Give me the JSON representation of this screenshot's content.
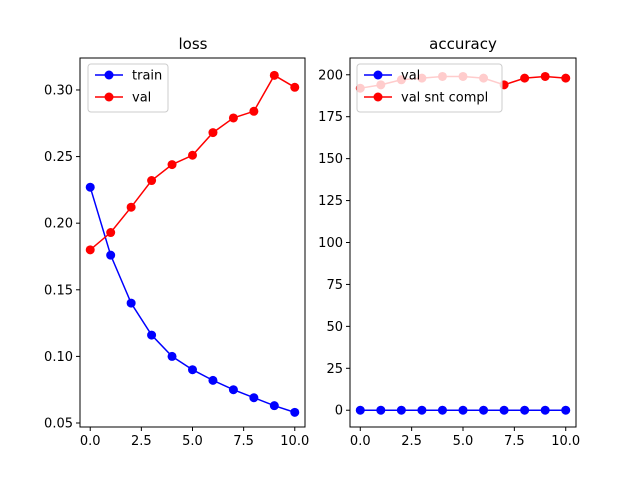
{
  "chart_data": [
    {
      "type": "line",
      "title": "loss",
      "xlabel": "",
      "ylabel": "",
      "xlim": [
        -0.5,
        10.5
      ],
      "ylim": [
        0.047,
        0.324
      ],
      "xticks": [
        0.0,
        2.5,
        5.0,
        7.5,
        10.0
      ],
      "xtick_labels": [
        "0.0",
        "2.5",
        "5.0",
        "7.5",
        "10.0"
      ],
      "yticks": [
        0.05,
        0.1,
        0.15,
        0.2,
        0.25,
        0.3
      ],
      "ytick_labels": [
        "0.05",
        "0.10",
        "0.15",
        "0.20",
        "0.25",
        "0.30"
      ],
      "grid": false,
      "legend": "upper-left",
      "x": [
        0,
        1,
        2,
        3,
        4,
        5,
        6,
        7,
        8,
        9,
        10
      ],
      "series": [
        {
          "name": "train",
          "color": "#0000ff",
          "marker": "circle",
          "values": [
            0.227,
            0.176,
            0.14,
            0.116,
            0.1,
            0.09,
            0.082,
            0.075,
            0.069,
            0.063,
            0.058
          ]
        },
        {
          "name": "val",
          "color": "#ff0000",
          "marker": "circle",
          "values": [
            0.18,
            0.193,
            0.212,
            0.232,
            0.244,
            0.251,
            0.268,
            0.279,
            0.284,
            0.311,
            0.302
          ]
        }
      ]
    },
    {
      "type": "line",
      "title": "accuracy",
      "xlabel": "",
      "ylabel": "",
      "xlim": [
        -0.5,
        10.5
      ],
      "ylim": [
        -10,
        210
      ],
      "xticks": [
        0.0,
        2.5,
        5.0,
        7.5,
        10.0
      ],
      "xtick_labels": [
        "0.0",
        "2.5",
        "5.0",
        "7.5",
        "10.0"
      ],
      "yticks": [
        0,
        25,
        50,
        75,
        100,
        125,
        150,
        175,
        200
      ],
      "ytick_labels": [
        "0",
        "25",
        "50",
        "75",
        "100",
        "125",
        "150",
        "175",
        "200"
      ],
      "grid": false,
      "legend": "upper-left",
      "x": [
        0,
        1,
        2,
        3,
        4,
        5,
        6,
        7,
        8,
        9,
        10
      ],
      "series": [
        {
          "name": "val",
          "color": "#0000ff",
          "marker": "circle",
          "values": [
            0,
            0,
            0,
            0,
            0,
            0,
            0,
            0,
            0,
            0,
            0
          ]
        },
        {
          "name": "val snt compl",
          "color": "#ff0000",
          "marker": "circle",
          "values": [
            192,
            194,
            197,
            198,
            199,
            199,
            198,
            194,
            198,
            199,
            198
          ]
        }
      ]
    }
  ]
}
